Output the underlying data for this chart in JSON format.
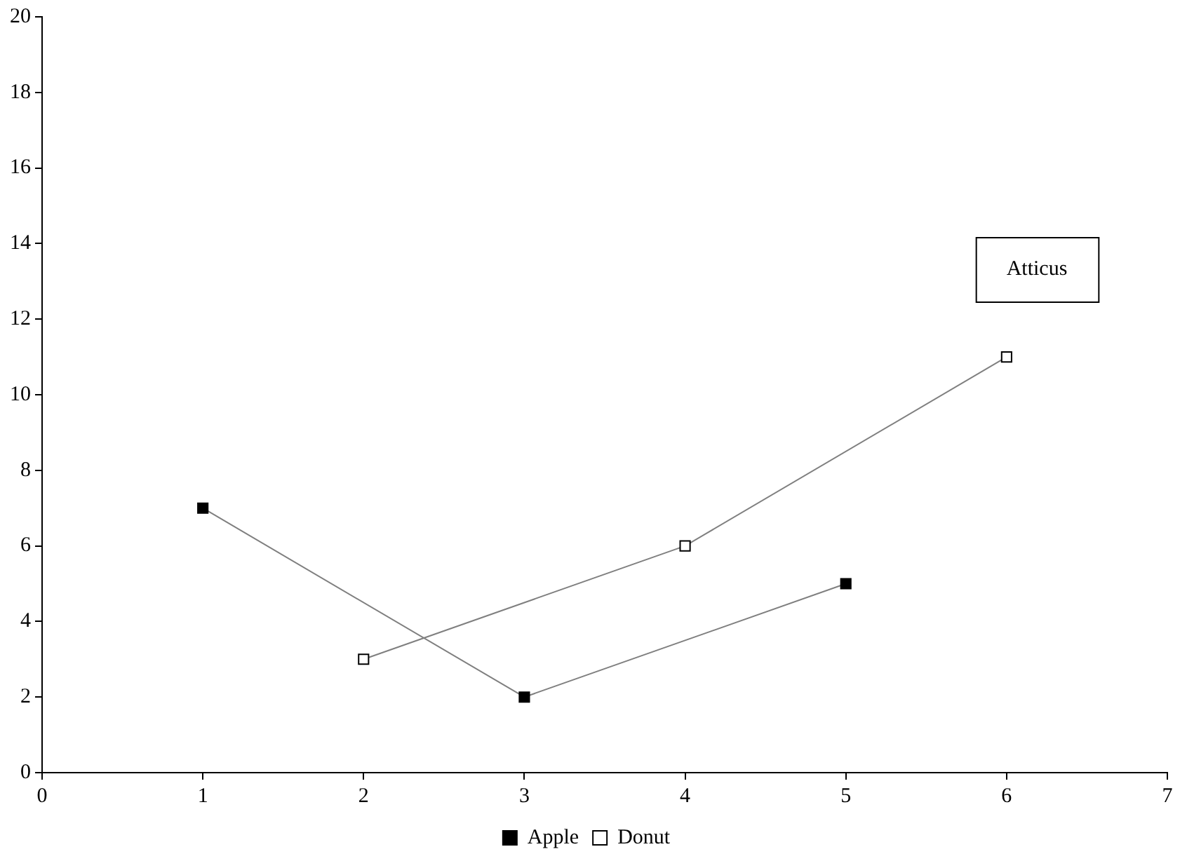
{
  "chart_data": {
    "type": "line",
    "annotations": [
      "Atticus"
    ],
    "series": [
      {
        "name": "Apple",
        "color": "#000000",
        "x": [
          1,
          3,
          5
        ],
        "values": [
          7,
          2,
          5
        ]
      },
      {
        "name": "Donut",
        "color": "#ffffff",
        "x": [
          2,
          4,
          6
        ],
        "values": [
          3,
          6,
          11
        ]
      }
    ],
    "xlim": [
      0,
      7
    ],
    "xticks": [
      0,
      1,
      2,
      3,
      4,
      5,
      6,
      7
    ],
    "ylim": [
      0,
      20
    ],
    "yticks": [
      0,
      2,
      4,
      6,
      8,
      10,
      12,
      14,
      16,
      18,
      20
    ],
    "grid": false,
    "legend": "bottom",
    "marker": "square",
    "line_style": "solid"
  }
}
